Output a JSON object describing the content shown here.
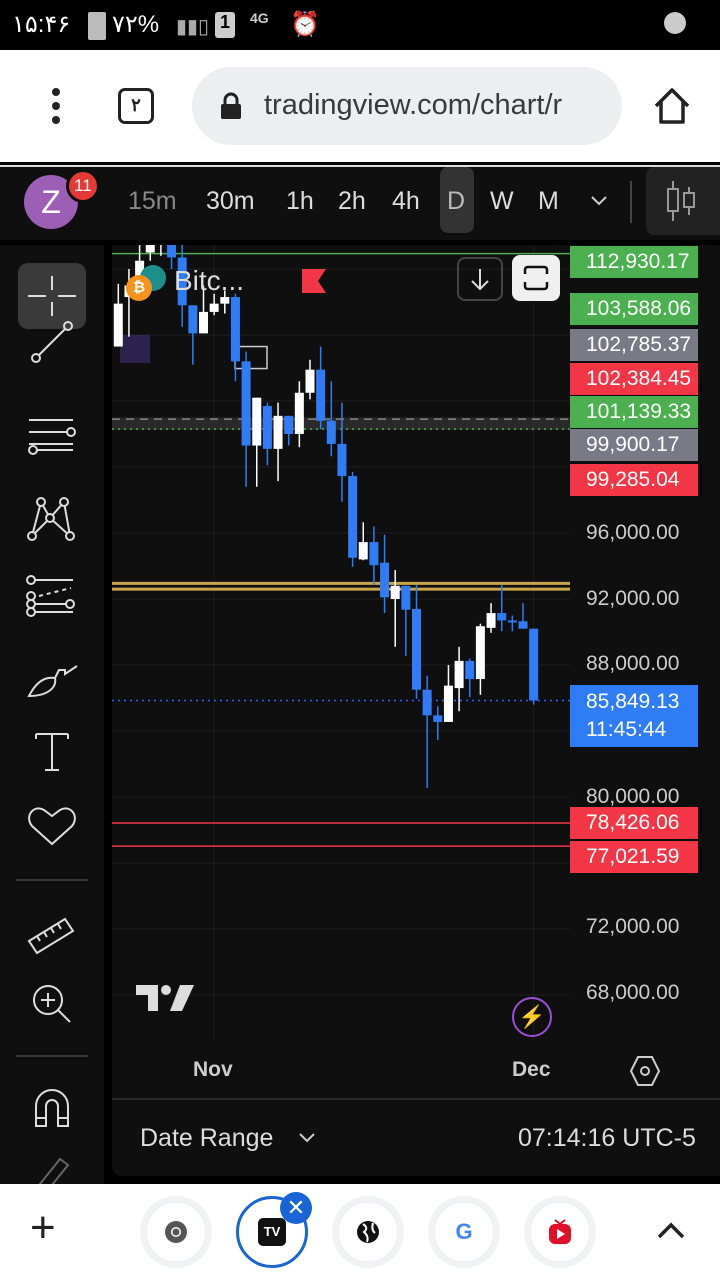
{
  "status_bar": {
    "time": "۱۵:۴۶",
    "battery": "۷۲%",
    "sim": "1",
    "network": "4G"
  },
  "browser": {
    "tab_count": "۲",
    "url": "tradingview.com/chart/r",
    "menu_icon": "more-vert-icon",
    "home_icon": "home-icon"
  },
  "toolbar": {
    "avatar_letter": "Z",
    "notification_count": "11",
    "avatar_color": "#9c5fb5",
    "intervals": [
      {
        "label": "15m",
        "active": false
      },
      {
        "label": "30m",
        "active": false
      },
      {
        "label": "1h",
        "active": false
      },
      {
        "label": "2h",
        "active": false
      },
      {
        "label": "4h",
        "active": false
      },
      {
        "label": "D",
        "active": true
      },
      {
        "label": "W",
        "active": false
      },
      {
        "label": "M",
        "active": false
      }
    ],
    "chart_type_icon": "candles-icon"
  },
  "drawing_tools": [
    "crosshair-icon",
    "trend-line-icon",
    "fib-retracement-icon",
    "xabcd-pattern-icon",
    "forecast-icon",
    "brush-icon",
    "text-icon",
    "heart-icon",
    "ruler-icon",
    "zoom-in-icon",
    "magnet-icon",
    "pencil-icon"
  ],
  "legend": {
    "symbol": "Bitc..."
  },
  "price_labels": [
    {
      "text": "112,930.17",
      "color": "#4caf50"
    },
    {
      "text": "103,588.06",
      "color": "#4caf50"
    },
    {
      "text": "102,785.37",
      "color": "#787b86"
    },
    {
      "text": "102,384.45",
      "color": "#f23645"
    },
    {
      "text": "101,139.33",
      "color": "#4caf50"
    },
    {
      "text": "99,900.17",
      "color": "#787b86"
    },
    {
      "text": "99,285.04",
      "color": "#f23645"
    },
    {
      "text": "78,426.06",
      "color": "#f23645"
    },
    {
      "text": "77,021.59",
      "color": "#f23645"
    }
  ],
  "axis_prices": [
    "96,000.00",
    "92,000.00",
    "88,000.00",
    "80,000.00",
    "72,000.00",
    "68,000.00"
  ],
  "current_price": {
    "price": "85,849.13",
    "countdown": "11:45:44",
    "color": "#2962ff"
  },
  "x_axis": [
    "Nov",
    "Dec"
  ],
  "bottom": {
    "date_range": "Date Range",
    "clock": "07:14:16 UTC-5"
  },
  "chart_data": {
    "type": "candlestick",
    "interval": "D",
    "colors": {
      "up": "#ffffff",
      "down": "#2f7cf6"
    },
    "x_ticks": [
      {
        "label": "Nov",
        "index": 9
      },
      {
        "label": "Dec",
        "index": 39
      }
    ],
    "y_ticks": [
      96000,
      92000,
      88000,
      80000,
      72000,
      68000
    ],
    "horizontal_lines": [
      {
        "price": 112930.17,
        "color": "#4caf50",
        "style": "solid"
      },
      {
        "price": 102900,
        "color": "#888888",
        "style": "dashed"
      },
      {
        "price": 102300,
        "color": "#4caf50",
        "style": "dotted"
      },
      {
        "price": 92950,
        "color": "#c9a54a",
        "style": "solid"
      },
      {
        "price": 92600,
        "color": "#c9a54a",
        "style": "solid"
      },
      {
        "price": 85849.13,
        "color": "#2962ff",
        "style": "dotted"
      },
      {
        "price": 78426.06,
        "color": "#f23645",
        "style": "solid"
      },
      {
        "price": 77021.59,
        "color": "#f23645",
        "style": "solid"
      }
    ],
    "candles": [
      [
        107300,
        111100,
        107300,
        109900
      ],
      [
        110300,
        112000,
        107900,
        111000
      ],
      [
        111000,
        113500,
        110500,
        112500
      ],
      [
        113000,
        114500,
        112500,
        114000
      ],
      [
        113500,
        115000,
        112800,
        114500
      ],
      [
        115000,
        115500,
        112000,
        112700
      ],
      [
        112700,
        115000,
        108500,
        109800
      ],
      [
        109800,
        109800,
        106200,
        108100
      ],
      [
        108100,
        111000,
        108100,
        109400
      ],
      [
        109400,
        110500,
        109200,
        109900
      ],
      [
        109900,
        110700,
        109300,
        110300
      ],
      [
        110300,
        110500,
        105200,
        106400
      ],
      [
        106400,
        107000,
        98800,
        101300
      ],
      [
        101300,
        104200,
        98800,
        104200
      ],
      [
        103700,
        103900,
        100100,
        101100
      ],
      [
        101100,
        103900,
        99150,
        103100
      ],
      [
        103100,
        103100,
        101300,
        102000
      ],
      [
        102000,
        105200,
        101200,
        104500
      ],
      [
        104500,
        106500,
        104100,
        105900
      ],
      [
        105900,
        107300,
        102300,
        102800
      ],
      [
        102800,
        105200,
        100650,
        101400
      ],
      [
        101400,
        103900,
        97900,
        99450
      ],
      [
        99450,
        99700,
        93950,
        94500
      ],
      [
        94400,
        96650,
        94350,
        95450
      ],
      [
        95450,
        96400,
        92850,
        94050
      ],
      [
        94200,
        95900,
        91150,
        92100
      ],
      [
        92000,
        93750,
        89100,
        92800
      ],
      [
        92800,
        92800,
        88550,
        91350
      ],
      [
        91400,
        92850,
        85950,
        86500
      ],
      [
        86500,
        87350,
        80550,
        84950
      ],
      [
        84950,
        85500,
        83450,
        84550
      ],
      [
        84550,
        88000,
        84550,
        86750
      ],
      [
        86600,
        89100,
        85200,
        88250
      ],
      [
        88250,
        88400,
        86050,
        87150
      ],
      [
        87150,
        90500,
        86200,
        90350
      ],
      [
        90250,
        91750,
        89950,
        91150
      ],
      [
        91150,
        92850,
        90050,
        90700
      ],
      [
        90700,
        91000,
        90050,
        90650
      ],
      [
        90650,
        91750,
        90200,
        90200
      ],
      [
        90200,
        90200,
        85600,
        85849.13
      ]
    ]
  },
  "tab_strip": {
    "new_tab": "+",
    "tabs": [
      "chrome-icon",
      "tradingview-icon",
      "globe-icon",
      "google-icon",
      "tv-app-icon"
    ],
    "active_tab": 1
  }
}
